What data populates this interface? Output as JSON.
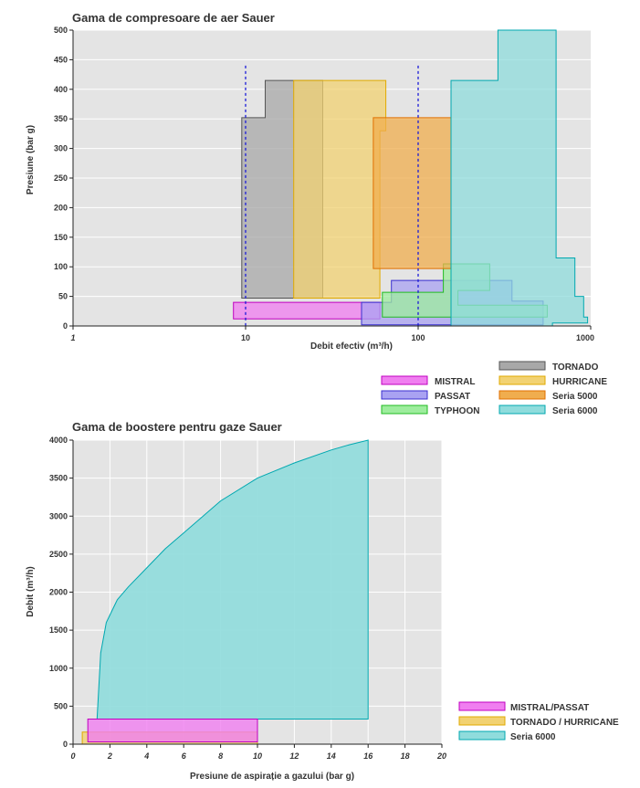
{
  "charts": [
    {
      "title": "Gama de compresoare de aer Sauer",
      "x_axis_label": "Debit efectiv (m³/h)",
      "y_axis_label": "Presiune (bar g)"
    },
    {
      "title": "Gama de boostere pentru gaze Sauer",
      "x_axis_label": "Presiune de aspirație a gazului (bar g)",
      "y_axis_label": "Debit (m³/h)"
    }
  ],
  "chart_data": [
    {
      "type": "area",
      "title": "Gama de compresoare de aer Sauer",
      "xlabel": "Debit efectiv (m³/h)",
      "ylabel": "Presiune (bar g)",
      "x_scale": "log",
      "xlim": [
        1,
        1000
      ],
      "ylim": [
        0,
        500
      ],
      "x_ticks": [
        "1",
        "10",
        "100",
        "1000"
      ],
      "x_tick_values": [
        1,
        10,
        100,
        1000
      ],
      "y_ticks": [
        0,
        50,
        100,
        150,
        200,
        250,
        300,
        350,
        400,
        450,
        500
      ],
      "grid": true,
      "legend_position": "bottom-right",
      "reference_lines_x": [
        10,
        100
      ],
      "series": [
        {
          "name": "MISTRAL",
          "color": "#f07ef0",
          "border": "#c000c0",
          "x": [
            8.5,
            60,
            60,
            8.5
          ],
          "y": [
            40,
            40,
            12,
            12
          ]
        },
        {
          "name": "PASSAT",
          "color": "#a9a2f2",
          "border": "#3a2fd0",
          "x": [
            47,
            47,
            70,
            70,
            350,
            350,
            530,
            530,
            47
          ],
          "y": [
            2,
            40,
            40,
            77,
            77,
            42,
            42,
            2,
            2
          ]
        },
        {
          "name": "TYPHOON",
          "color": "#9ded9d",
          "border": "#22bb22",
          "x": [
            140,
            140,
            260,
            260,
            170,
            170,
            560,
            560,
            62,
            62,
            140
          ],
          "y": [
            57,
            105,
            105,
            60,
            60,
            35,
            35,
            15,
            15,
            57,
            57
          ]
        },
        {
          "name": "TORNADO",
          "color": "#a8a8a8",
          "border": "#555555",
          "x": [
            9.5,
            9.5,
            13,
            13,
            28,
            28,
            9.5
          ],
          "y": [
            47,
            352,
            352,
            415,
            415,
            47,
            47
          ]
        },
        {
          "name": "HURRICANE",
          "color": "#f2d272",
          "border": "#e0aa00",
          "x": [
            19,
            19,
            65,
            65,
            60,
            60,
            19
          ],
          "y": [
            47,
            415,
            415,
            330,
            330,
            47,
            47
          ]
        },
        {
          "name": "Seria 5000",
          "color": "#f0ad4e",
          "border": "#e07000",
          "x": [
            55,
            55,
            155,
            155,
            55
          ],
          "y": [
            97,
            352,
            352,
            97,
            97
          ]
        },
        {
          "name": "Seria 6000",
          "color": "#8fdcdc",
          "border": "#00a8b0",
          "x": [
            155,
            155,
            290,
            290,
            630,
            630,
            810,
            810,
            910,
            910,
            960,
            960,
            600,
            600,
            155
          ],
          "y": [
            0,
            415,
            415,
            500,
            500,
            115,
            115,
            50,
            50,
            15,
            15,
            5,
            5,
            0,
            0
          ]
        }
      ]
    },
    {
      "type": "area",
      "title": "Gama de boostere pentru gaze Sauer",
      "xlabel": "Presiune de aspirație a gazului (bar g)",
      "ylabel": "Debit (m³/h)",
      "xlim": [
        0,
        20
      ],
      "ylim": [
        0,
        4000
      ],
      "x_ticks": [
        0,
        2,
        4,
        6,
        8,
        10,
        12,
        14,
        16,
        18,
        20
      ],
      "y_ticks": [
        0,
        500,
        1000,
        1500,
        2000,
        2500,
        3000,
        3500,
        4000
      ],
      "grid": true,
      "legend_position": "bottom-right",
      "series": [
        {
          "name": "MISTRAL/PASSAT",
          "color": "#f07ef0",
          "border": "#c000c0",
          "x": [
            0.8,
            10,
            10,
            0.8,
            0.8
          ],
          "y": [
            330,
            330,
            30,
            30,
            330
          ]
        },
        {
          "name": "TORNADO / HURRICANE",
          "color": "#f2d272",
          "border": "#e0aa00",
          "x": [
            0.5,
            10,
            10,
            0.5,
            0.5
          ],
          "y": [
            160,
            160,
            0,
            0,
            160
          ]
        },
        {
          "name": "Seria 6000",
          "color": "#8fdcdc",
          "border": "#00a8b0",
          "x": [
            1.3,
            1.5,
            1.8,
            2,
            2.4,
            3,
            4,
            5,
            6,
            8,
            10,
            12,
            14,
            15,
            16,
            16,
            1.3
          ],
          "y": [
            330,
            1200,
            1600,
            1700,
            1900,
            2070,
            2320,
            2570,
            2780,
            3200,
            3500,
            3700,
            3870,
            3940,
            4000,
            330,
            330
          ]
        }
      ]
    }
  ]
}
